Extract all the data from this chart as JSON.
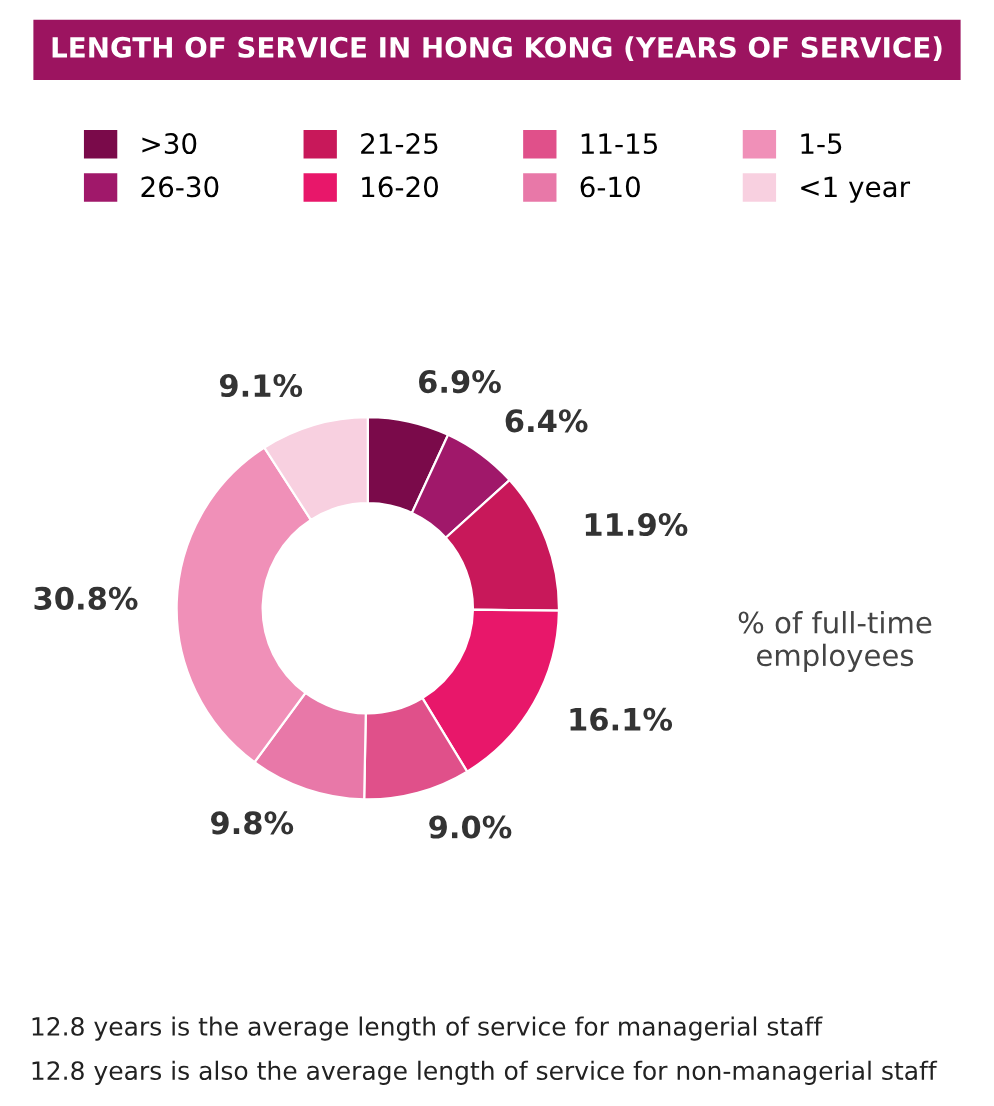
{
  "chart_data": {
    "type": "donut",
    "title": "LENGTH OF SERVICE IN HONG KONG (YEARS OF SERVICE)",
    "categories": [
      ">30",
      "26-30",
      "21-25",
      "16-20",
      "11-15",
      "6-10",
      "1-5",
      "<1 year"
    ],
    "values": [
      6.9,
      6.4,
      11.9,
      16.1,
      9.0,
      9.8,
      30.8,
      9.1
    ],
    "value_labels": [
      "6.9%",
      "6.4%",
      "11.9%",
      "16.1%",
      "9.0%",
      "9.8%",
      "30.8%",
      "9.1%"
    ],
    "colors": [
      "#7a0a4a",
      "#a0186a",
      "#c8185a",
      "#e8176a",
      "#e0508a",
      "#e878a8",
      "#f090b8",
      "#f8d0e0"
    ],
    "legend": "top",
    "annotations": [
      "% of full-time employees",
      "12.8 years is the average length of service for managerial staff",
      "12.8 years is also the average length of service for non-managerial staff"
    ]
  }
}
